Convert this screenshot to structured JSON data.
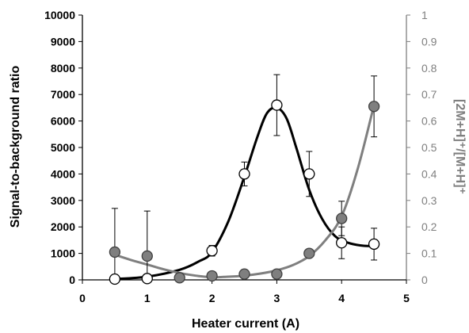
{
  "chart_data": {
    "type": "scatter",
    "x_axis": {
      "label": "Heater current (A)",
      "range": [
        0,
        5
      ],
      "ticks": [
        "0",
        "1",
        "2",
        "3",
        "4",
        "5"
      ]
    },
    "y_left": {
      "label": "Signal-to-background ratio",
      "range": [
        0,
        10000
      ],
      "ticks": [
        "0",
        "1000",
        "2000",
        "3000",
        "4000",
        "5000",
        "6000",
        "7000",
        "8000",
        "9000",
        "10000"
      ]
    },
    "y_right": {
      "label": "[2M+H]⁺/[M+H]⁺",
      "range": [
        0,
        1
      ],
      "ticks": [
        "0",
        "0.1",
        "0.2",
        "0.3",
        "0.4",
        "0.5",
        "0.6",
        "0.7",
        "0.8",
        "0.9",
        "1"
      ]
    },
    "grid": false,
    "series": [
      {
        "marker": "open-circle",
        "axis": "left",
        "line_color": "#000000",
        "x": [
          0.5,
          1.0,
          2.0,
          2.5,
          3.0,
          3.5,
          4.0,
          4.5
        ],
        "y": [
          30,
          50,
          1100,
          4000,
          6600,
          4000,
          1400,
          1350
        ],
        "error": [
          0,
          0,
          200,
          450,
          1150,
          850,
          600,
          600
        ],
        "curve_x": [
          0.5,
          1.0,
          1.5,
          1.8,
          2.0,
          2.25,
          2.5,
          2.7,
          2.85,
          3.0,
          3.15,
          3.3,
          3.5,
          3.7,
          3.9,
          4.1,
          4.3,
          4.5
        ],
        "curve_y": [
          30,
          120,
          380,
          700,
          1050,
          2200,
          3900,
          5400,
          6300,
          6500,
          6100,
          5000,
          3400,
          2300,
          1650,
          1400,
          1300,
          1270
        ]
      },
      {
        "marker": "filled-circle",
        "axis": "right",
        "line_color": "#7f7f7f",
        "x": [
          0.5,
          1.0,
          1.5,
          2.0,
          2.5,
          3.0,
          3.5,
          4.0,
          4.5
        ],
        "y": [
          0.105,
          0.09,
          0.008,
          0.015,
          0.022,
          0.022,
          0.1,
          0.232,
          0.655
        ],
        "error": [
          0.165,
          0.17,
          0,
          0,
          0,
          0,
          0,
          0.065,
          0.115
        ],
        "curve_x": [
          0.5,
          0.75,
          1.0,
          1.25,
          1.5,
          1.75,
          2.0,
          2.25,
          2.5,
          2.75,
          3.0,
          3.25,
          3.5,
          3.75,
          4.0,
          4.25,
          4.5
        ],
        "curve_y": [
          0.095,
          0.075,
          0.058,
          0.04,
          0.026,
          0.016,
          0.01,
          0.012,
          0.016,
          0.024,
          0.036,
          0.056,
          0.09,
          0.15,
          0.24,
          0.42,
          0.66
        ]
      }
    ]
  }
}
